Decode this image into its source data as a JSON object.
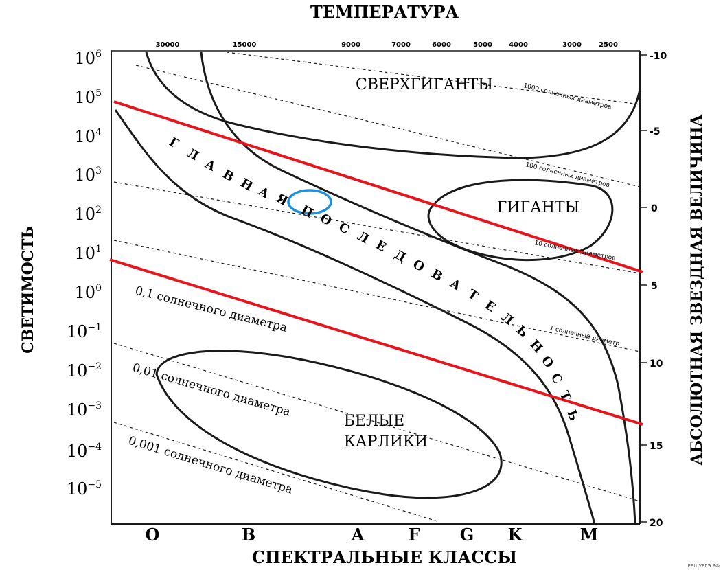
{
  "titles": {
    "top": "ТЕМПЕРАТУРА",
    "bottom": "СПЕКТРАЛЬНЫЕ КЛАССЫ",
    "left": "СВЕТИМОСТЬ",
    "right": "АБСОЛЮТНАЯ ЗВЕЗДНАЯ ВЕЛИЧИНА"
  },
  "temperature_ticks": [
    "30000",
    "15000",
    "9000",
    "7000",
    "6000",
    "5000",
    "4000",
    "3000",
    "2500"
  ],
  "luminosity_ticks": [
    {
      "base": "10",
      "exp": "6"
    },
    {
      "base": "10",
      "exp": "5"
    },
    {
      "base": "10",
      "exp": "4"
    },
    {
      "base": "10",
      "exp": "3"
    },
    {
      "base": "10",
      "exp": "2"
    },
    {
      "base": "10",
      "exp": "1"
    },
    {
      "base": "10",
      "exp": "0"
    },
    {
      "base": "10",
      "exp": "−1"
    },
    {
      "base": "10",
      "exp": "−2"
    },
    {
      "base": "10",
      "exp": "−3"
    },
    {
      "base": "10",
      "exp": "−4"
    },
    {
      "base": "10",
      "exp": "−5"
    }
  ],
  "magnitude_ticks": [
    "-10",
    "-5",
    "0",
    "5",
    "10",
    "15",
    "20"
  ],
  "spectral_classes": [
    "O",
    "B",
    "A",
    "F",
    "G",
    "K",
    "M"
  ],
  "regions": {
    "supergiants": "СВЕРХГИГАНТЫ",
    "giants": "ГИГАНТЫ",
    "white_dwarfs_line1": "БЕЛЫЕ",
    "white_dwarfs_line2": "КАРЛИКИ",
    "main_sequence_letters": [
      "Г",
      "Л",
      "А",
      "В",
      "Н",
      "А",
      "Я",
      "П",
      "О",
      "С",
      "Л",
      "Е",
      "Д",
      "О",
      "В",
      "А",
      "Т",
      "Е",
      "Л",
      "Ь",
      "Н",
      "О",
      "С",
      "Т",
      "Ь"
    ]
  },
  "diameter_labels": {
    "d1000": "1000 солнечных диаметров",
    "d100": "100 солнечных диаметров",
    "d10": "10 солнечных диаметров",
    "d1": "1 солнечный диаметр",
    "d01": "0,1 солнечного диаметра",
    "d001": "0,01 солнечного диаметра",
    "d0001": "0,001 солнечного диаметра"
  },
  "watermark": "РЕШУЕГЭ.РФ",
  "colors": {
    "curves": "#1a1a1a",
    "red_lines": "#e8141c",
    "highlight_ellipse": "#1e90e0"
  }
}
